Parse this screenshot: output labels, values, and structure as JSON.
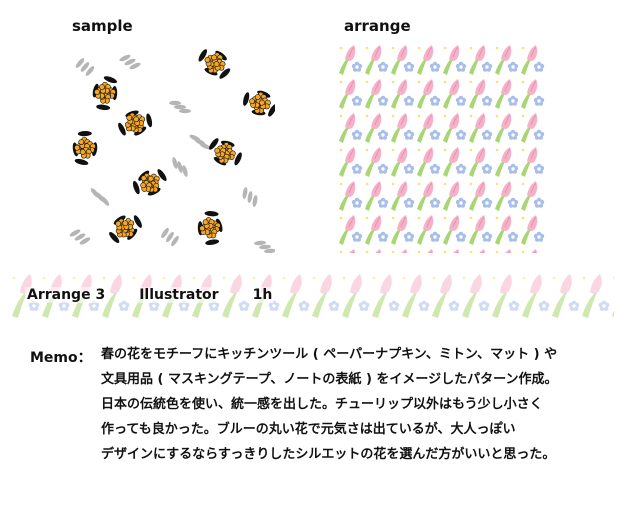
{
  "labels": {
    "sample": "sample",
    "arrange": "arrange"
  },
  "band": {
    "title": "Arrange 3",
    "tool": "Illustrator",
    "duration": "1h"
  },
  "memo": {
    "label": "Memo：",
    "lines": [
      "春の花をモチーフにキッチンツール ( ペーパーナプキン、ミトン、マット ) や",
      "文具用品 ( マスキングテープ、ノートの表紙 ) をイメージしたパターン作成。",
      "日本の伝統色を使い、統一感を出した。チューリップ以外はもう少し小さく",
      "作っても良かった。ブルーの丸い花で元気さは出ているが、大人っぽい",
      "デザインにするならすっきりしたシルエットの花を選んだ方がいいと思った。"
    ]
  },
  "colors": {
    "orange_flower": "#f5a623",
    "black_leaf": "#111111",
    "grey_leaf": "#b5b5b5",
    "tulip_pink": "#f3a7c0",
    "tulip_leaf": "#9fcf6a",
    "blue_flower": "#9db5e6",
    "yellow_center": "#f4e56b"
  },
  "icons": {
    "sample": "floral-sample-pattern",
    "arrange": "tulip-repeat-pattern"
  }
}
